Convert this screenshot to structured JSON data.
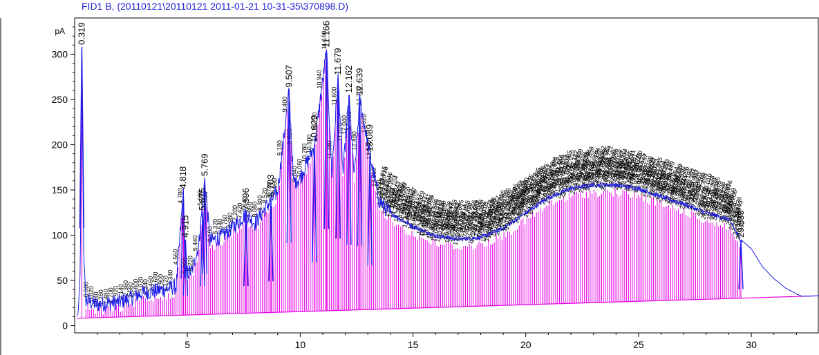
{
  "chart_data": {
    "type": "line",
    "title": "FID1 B,  (20110121\\20110121 2011-01-21 10-31-35\\370898.D)",
    "ylabel": "pA",
    "xlabel": "",
    "xlim": [
      0,
      33
    ],
    "ylim": [
      -8,
      340
    ],
    "x_ticks": [
      5,
      10,
      15,
      20,
      25,
      30
    ],
    "y_ticks": [
      0,
      50,
      100,
      150,
      200,
      250,
      300
    ],
    "grid": false,
    "colors": {
      "signal": "#1f1fe6",
      "baseline": "#e600e6",
      "title": "#1f1fd6",
      "axes": "#000000"
    },
    "labeled_peaks": [
      {
        "rt": 0.319,
        "label": "0.319",
        "height": 308
      },
      {
        "rt": 4.818,
        "label": "4.818",
        "height": 149
      },
      {
        "rt": 4.915,
        "label": "4.915",
        "height": 95
      },
      {
        "rt": 5.675,
        "label": "5.675",
        "height": 125
      },
      {
        "rt": 5.769,
        "label": "5.769",
        "height": 163
      },
      {
        "rt": 7.596,
        "label": "7.596",
        "height": 125
      },
      {
        "rt": 8.703,
        "label": "8.703",
        "height": 140
      },
      {
        "rt": 9.507,
        "label": "9.507",
        "height": 261
      },
      {
        "rt": 10.629,
        "label": "10.629",
        "height": 200
      },
      {
        "rt": 11.166,
        "label": "11.166",
        "height": 305
      },
      {
        "rt": 11.679,
        "label": "11.679",
        "height": 275
      },
      {
        "rt": 12.162,
        "label": "12.162",
        "height": 255
      },
      {
        "rt": 12.639,
        "label": "12.639",
        "height": 252
      },
      {
        "rt": 13.089,
        "label": "13.089",
        "height": 190
      },
      {
        "rt": 29.539,
        "label": "29.539",
        "height": 95
      }
    ],
    "signal": {
      "x": [
        0.0,
        0.15,
        0.25,
        0.319,
        0.4,
        0.5,
        1.0,
        1.5,
        2.0,
        2.5,
        3.0,
        3.5,
        4.0,
        4.5,
        4.818,
        4.9,
        5.2,
        5.5,
        5.769,
        6.0,
        6.5,
        7.0,
        7.596,
        8.0,
        8.703,
        9.0,
        9.507,
        9.7,
        10.0,
        10.629,
        11.166,
        11.4,
        11.679,
        11.9,
        12.162,
        12.4,
        12.639,
        13.089,
        13.5,
        14.0,
        15.0,
        16.0,
        17.0,
        18.0,
        19.0,
        20.0,
        21.0,
        22.0,
        23.0,
        24.0,
        25.0,
        26.0,
        27.0,
        28.0,
        29.0,
        29.539,
        30.0,
        30.5,
        31.0,
        31.5,
        32.0,
        32.5,
        33.0
      ],
      "y": [
        10,
        12,
        60,
        308,
        80,
        30,
        25,
        27,
        28,
        32,
        38,
        40,
        42,
        45,
        149,
        60,
        62,
        90,
        163,
        95,
        100,
        110,
        125,
        115,
        140,
        150,
        261,
        160,
        165,
        200,
        305,
        170,
        275,
        170,
        255,
        165,
        252,
        190,
        140,
        125,
        110,
        100,
        96,
        98,
        108,
        125,
        142,
        152,
        156,
        156,
        152,
        143,
        135,
        125,
        118,
        95,
        85,
        65,
        52,
        42,
        35,
        30,
        26
      ]
    },
    "baseline": {
      "x": [
        0,
        33
      ],
      "y": [
        8,
        33
      ]
    },
    "notes": "Hundreds of additional retention-time labels from ~14 to ~29.5 min overlap illegibly along the broad hump; peak drop lines are drawn in magenta."
  }
}
